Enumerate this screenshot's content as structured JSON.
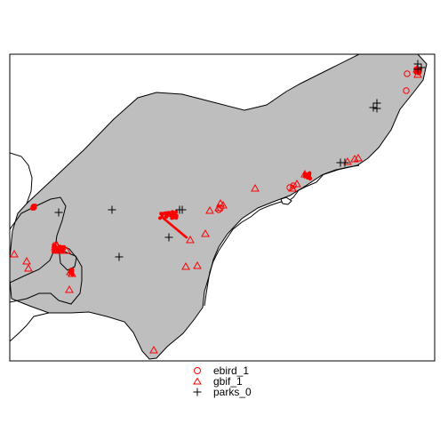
{
  "legend": {
    "items": [
      {
        "label": "ebird_1",
        "symbol": "circle",
        "color": "#ff0000"
      },
      {
        "label": "gbif_1",
        "symbol": "triangle",
        "color": "#ff0000"
      },
      {
        "label": "parks_0",
        "symbol": "plus",
        "color": "#000000"
      }
    ]
  },
  "colors": {
    "range_fill": "#bebebe",
    "outline": "#000000",
    "occurrence": "#ff0000",
    "park": "#000000"
  },
  "map": {
    "frame": true,
    "layers": [
      "range polygon",
      "coastline and boundaries",
      "occurrence points",
      "park points"
    ]
  }
}
